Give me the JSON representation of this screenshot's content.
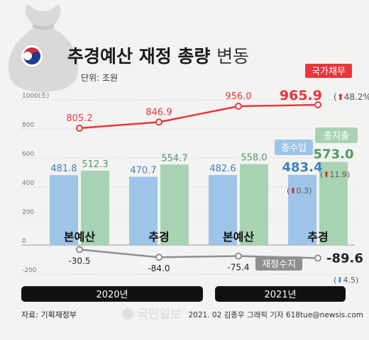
{
  "header": {
    "title_bold": "추경예산 재정 총량",
    "title_light": "변동",
    "unit": "단위: 조원"
  },
  "legend": {
    "debt": "국가채무",
    "expenditure": "총지출",
    "revenue": "총수입",
    "balance": "재정수지"
  },
  "years": [
    "2020년",
    "2021년"
  ],
  "footer": {
    "source": "자료: 기획재정부",
    "credit": "2021. 02 김종우 그래픽 기자 618tue@newsis.com",
    "watermark": "국민일보"
  },
  "colors": {
    "debt": "#e8363c",
    "expenditure": "#a8d3b2",
    "expenditure_text": "#4f9a63",
    "revenue": "#9ec4e8",
    "revenue_text": "#3f7fc0",
    "balance": "#8f8f8f",
    "up_arrow": "#e02020",
    "down_arrow": "#3a8ed6"
  },
  "chart_data": {
    "type": "bar",
    "categories": [
      "본예산",
      "추경",
      "본예산",
      "추경"
    ],
    "ylabel": "1000(조)",
    "yticks": [
      1000,
      800,
      600,
      400,
      200,
      0,
      -200
    ],
    "ylim": [
      -250,
      1050
    ],
    "series": [
      {
        "name": "국가채무",
        "kind": "line",
        "values": [
          805.2,
          846.9,
          956.0,
          965.9
        ],
        "labels": [
          "805.2",
          "846.9",
          "956.0",
          "965.9"
        ]
      },
      {
        "name": "총수입",
        "kind": "bar",
        "values": [
          481.8,
          470.7,
          482.6,
          483.4
        ],
        "labels": [
          "481.8",
          "470.7",
          "482.6",
          "483.4"
        ]
      },
      {
        "name": "총지출",
        "kind": "bar",
        "values": [
          512.3,
          554.7,
          558.0,
          573.0
        ],
        "labels": [
          "512.3",
          "554.7",
          "558.0",
          "573.0"
        ]
      },
      {
        "name": "재정수지",
        "kind": "line",
        "values": [
          -30.5,
          -84.0,
          -75.4,
          -89.6
        ],
        "labels": [
          "-30.5",
          "-84.0",
          "-75.4",
          "-89.6"
        ]
      }
    ],
    "changes": {
      "debt": "48.2%",
      "revenue": "0.3",
      "expenditure": "11.9",
      "balance": "4.5"
    }
  }
}
